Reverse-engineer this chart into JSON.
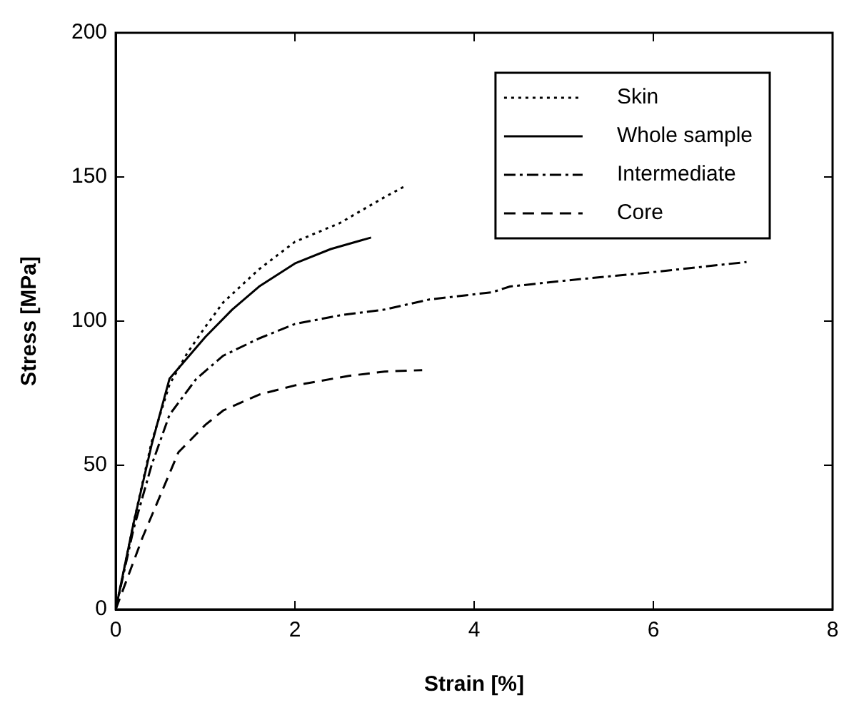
{
  "chart_data": {
    "type": "line",
    "xlabel": "Strain [%]",
    "ylabel": "Stress [MPa]",
    "xlim": [
      0,
      8
    ],
    "xticks": [
      0,
      2,
      4,
      6,
      8
    ],
    "ylim": [
      0,
      200
    ],
    "yticks": [
      0,
      50,
      100,
      150,
      200
    ],
    "grid": false,
    "legend": "top right",
    "marker": "none",
    "series": [
      {
        "name": "Skin",
        "color": "#000000",
        "line_style": "dotted",
        "x": [
          0,
          0.2,
          0.4,
          0.6,
          0.8,
          1,
          1.2,
          1.6,
          2,
          2.5,
          3,
          3.24
        ],
        "values": [
          0,
          30,
          58,
          78,
          89,
          98,
          106.5,
          118,
          127.5,
          134,
          143,
          147
        ]
      },
      {
        "name": "Whole sample",
        "color": "#000000",
        "line_style": "solid",
        "x": [
          0,
          0.2,
          0.4,
          0.6,
          1,
          1.3,
          1.6,
          2,
          2.4,
          2.85
        ],
        "values": [
          0,
          30,
          57,
          80,
          94.5,
          104,
          112,
          120,
          125,
          129
        ]
      },
      {
        "name": "Intermediate",
        "color": "#000000",
        "line_style": "dashdot",
        "x": [
          0,
          0.2,
          0.4,
          0.6,
          0.9,
          1.2,
          1.6,
          2,
          2.5,
          3,
          3.5,
          4.2,
          4.4,
          5,
          6,
          7.04
        ],
        "values": [
          0,
          28,
          50,
          67.5,
          80,
          88,
          94,
          99,
          102,
          104,
          107.5,
          110,
          112,
          114,
          117,
          120.5
        ]
      },
      {
        "name": "Core",
        "color": "#000000",
        "line_style": "dashed",
        "x": [
          0,
          0.3,
          0.7,
          1,
          1.2,
          1.6,
          2,
          2.6,
          3,
          3.42
        ],
        "values": [
          0,
          25,
          54.5,
          64,
          69,
          74.5,
          77.7,
          81,
          82.5,
          83
        ]
      }
    ]
  }
}
